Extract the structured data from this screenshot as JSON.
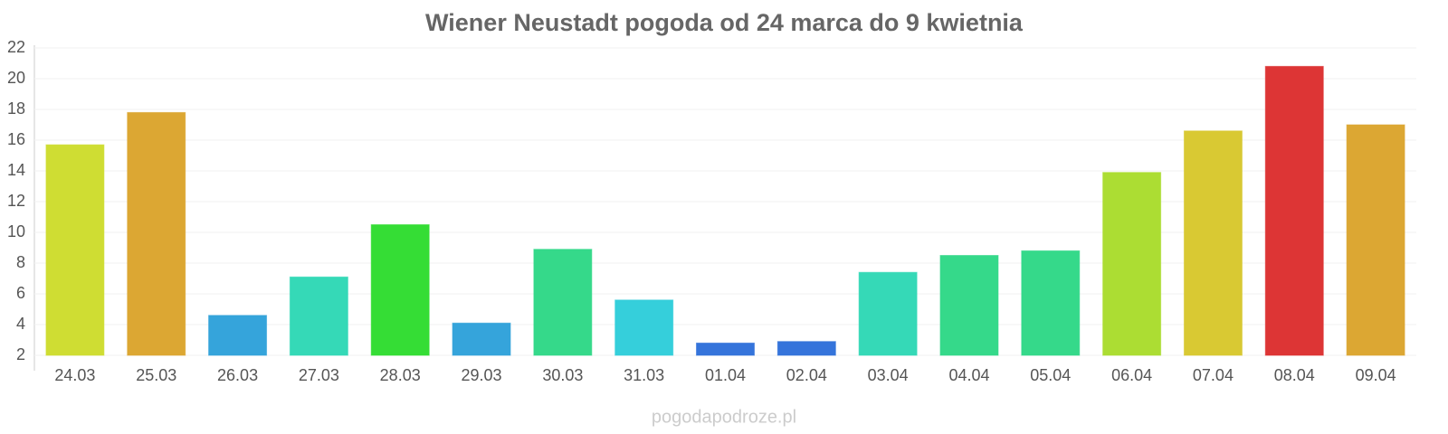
{
  "chart_data": {
    "type": "bar",
    "title": "Wiener Neustadt pogoda od 24 marca do 9 kwietnia",
    "categories": [
      "24.03",
      "25.03",
      "26.03",
      "27.03",
      "28.03",
      "29.03",
      "30.03",
      "31.03",
      "01.04",
      "02.04",
      "03.04",
      "04.04",
      "05.04",
      "06.04",
      "07.04",
      "08.04",
      "09.04"
    ],
    "values": [
      15.7,
      17.8,
      4.6,
      7.1,
      10.5,
      4.1,
      8.9,
      5.6,
      2.8,
      2.9,
      7.4,
      8.5,
      8.8,
      13.9,
      16.6,
      20.8,
      17.0
    ],
    "colors": [
      "#cfdd33",
      "#dca733",
      "#35a4db",
      "#35d9b7",
      "#35dd35",
      "#35a4db",
      "#35d98a",
      "#35cfdb",
      "#3574db",
      "#3574db",
      "#35d9b7",
      "#35d98a",
      "#35d98a",
      "#acdd33",
      "#d9c933",
      "#dd3535",
      "#dca733"
    ],
    "ylim": [
      2,
      22
    ],
    "yticks": [
      2,
      4,
      6,
      8,
      10,
      12,
      14,
      16,
      18,
      20,
      22
    ],
    "grid": true,
    "source": "pogodapodroze.pl"
  }
}
